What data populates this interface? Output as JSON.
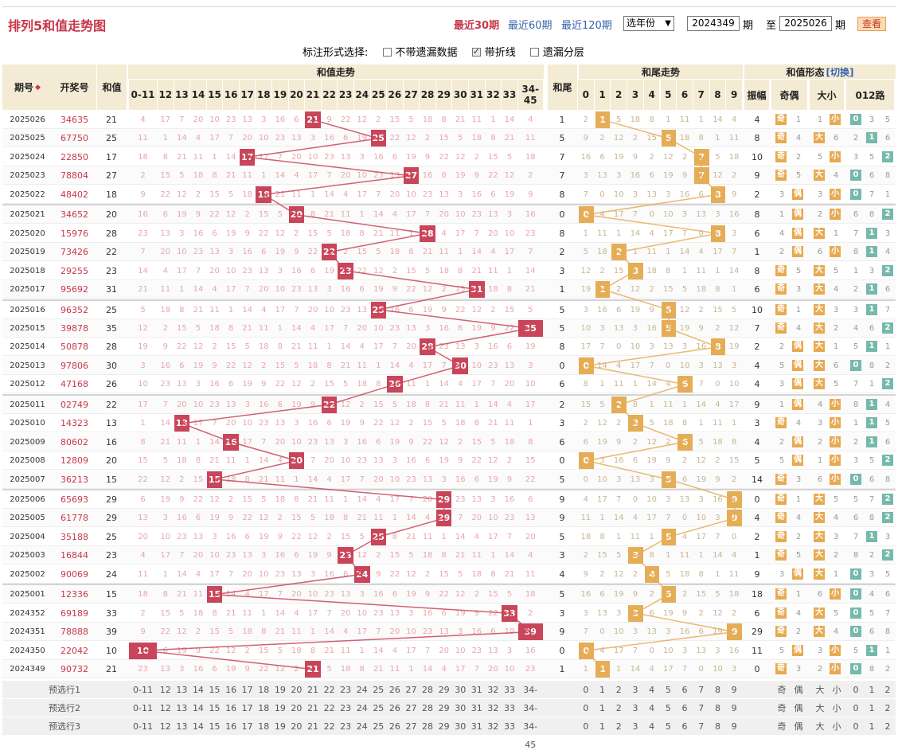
{
  "page": {
    "title": "排列5和值走势图"
  },
  "periods": {
    "links": [
      "最近30期",
      "最近60期",
      "最近120期"
    ],
    "active_index": 0
  },
  "toolbar": {
    "year_select": "选年份",
    "from_issue": "2024349",
    "label_qi": "期",
    "label_to": "至",
    "to_issue": "2025026",
    "query_button": "查看"
  },
  "marking": {
    "label": "标注形式选择:",
    "options": [
      {
        "label": "不带遗漏数据",
        "checked": false
      },
      {
        "label": "带折线",
        "checked": true
      },
      {
        "label": "遗漏分层",
        "checked": false
      }
    ]
  },
  "headers": {
    "issue": "期号",
    "prize": "开奖号",
    "sum": "和值",
    "sum_trend": "和值走势",
    "tail": "和尾",
    "tail_trend": "和尾走势",
    "form": "和值形态",
    "switch_link": "[切换]",
    "amplitude": "振幅",
    "odd_even": "奇偶",
    "big_small": "大小",
    "road": "012路",
    "sum_cols": [
      "0-11",
      "12",
      "13",
      "14",
      "15",
      "16",
      "17",
      "18",
      "19",
      "20",
      "21",
      "22",
      "23",
      "24",
      "25",
      "26",
      "27",
      "28",
      "29",
      "30",
      "31",
      "32",
      "33",
      "34-45"
    ],
    "tail_cols": [
      "0",
      "1",
      "2",
      "3",
      "4",
      "5",
      "6",
      "7",
      "8",
      "9"
    ]
  },
  "rows": [
    {
      "issue": "2025026",
      "prize": "34635",
      "sum": 21,
      "tail": 1,
      "amp": 4,
      "odd": "奇",
      "big": "小",
      "road": 0
    },
    {
      "issue": "2025025",
      "prize": "67750",
      "sum": 25,
      "tail": 5,
      "amp": 8,
      "odd": "奇",
      "big": "大",
      "road": 1
    },
    {
      "issue": "2025024",
      "prize": "22850",
      "sum": 17,
      "tail": 7,
      "amp": 10,
      "odd": "奇",
      "big": "小",
      "road": 2
    },
    {
      "issue": "2025023",
      "prize": "78804",
      "sum": 27,
      "tail": 7,
      "amp": 9,
      "odd": "奇",
      "big": "大",
      "road": 0
    },
    {
      "issue": "2025022",
      "prize": "48402",
      "sum": 18,
      "tail": 8,
      "amp": 2,
      "odd": "偶",
      "big": "小",
      "road": 0
    },
    {
      "issue": "2025021",
      "prize": "34652",
      "sum": 20,
      "tail": 0,
      "amp": 8,
      "odd": "偶",
      "big": "小",
      "road": 2
    },
    {
      "issue": "2025020",
      "prize": "15976",
      "sum": 28,
      "tail": 8,
      "amp": 6,
      "odd": "偶",
      "big": "大",
      "road": 1
    },
    {
      "issue": "2025019",
      "prize": "73426",
      "sum": 22,
      "tail": 2,
      "amp": 1,
      "odd": "偶",
      "big": "小",
      "road": 1
    },
    {
      "issue": "2025018",
      "prize": "29255",
      "sum": 23,
      "tail": 3,
      "amp": 8,
      "odd": "奇",
      "big": "大",
      "road": 2
    },
    {
      "issue": "2025017",
      "prize": "95692",
      "sum": 31,
      "tail": 1,
      "amp": 6,
      "odd": "奇",
      "big": "大",
      "road": 1
    },
    {
      "issue": "2025016",
      "prize": "96352",
      "sum": 25,
      "tail": 5,
      "amp": 10,
      "odd": "奇",
      "big": "大",
      "road": 1
    },
    {
      "issue": "2025015",
      "prize": "39878",
      "sum": 35,
      "tail": 5,
      "amp": 7,
      "odd": "奇",
      "big": "大",
      "road": 2
    },
    {
      "issue": "2025014",
      "prize": "50878",
      "sum": 28,
      "tail": 8,
      "amp": 2,
      "odd": "偶",
      "big": "大",
      "road": 1
    },
    {
      "issue": "2025013",
      "prize": "97806",
      "sum": 30,
      "tail": 0,
      "amp": 4,
      "odd": "偶",
      "big": "大",
      "road": 0
    },
    {
      "issue": "2025012",
      "prize": "47168",
      "sum": 26,
      "tail": 6,
      "amp": 4,
      "odd": "偶",
      "big": "大",
      "road": 2
    },
    {
      "issue": "2025011",
      "prize": "02749",
      "sum": 22,
      "tail": 2,
      "amp": 9,
      "odd": "偶",
      "big": "小",
      "road": 1
    },
    {
      "issue": "2025010",
      "prize": "14323",
      "sum": 13,
      "tail": 3,
      "amp": 3,
      "odd": "奇",
      "big": "小",
      "road": 1
    },
    {
      "issue": "2025009",
      "prize": "80602",
      "sum": 16,
      "tail": 6,
      "amp": 4,
      "odd": "偶",
      "big": "小",
      "road": 1
    },
    {
      "issue": "2025008",
      "prize": "12809",
      "sum": 20,
      "tail": 0,
      "amp": 5,
      "odd": "偶",
      "big": "小",
      "road": 2
    },
    {
      "issue": "2025007",
      "prize": "36213",
      "sum": 15,
      "tail": 5,
      "amp": 14,
      "odd": "奇",
      "big": "小",
      "road": 0
    },
    {
      "issue": "2025006",
      "prize": "65693",
      "sum": 29,
      "tail": 9,
      "amp": 0,
      "odd": "奇",
      "big": "大",
      "road": 2
    },
    {
      "issue": "2025005",
      "prize": "61778",
      "sum": 29,
      "tail": 9,
      "amp": 4,
      "odd": "奇",
      "big": "大",
      "road": 2
    },
    {
      "issue": "2025004",
      "prize": "35188",
      "sum": 25,
      "tail": 5,
      "amp": 2,
      "odd": "奇",
      "big": "大",
      "road": 1
    },
    {
      "issue": "2025003",
      "prize": "16844",
      "sum": 23,
      "tail": 3,
      "amp": 1,
      "odd": "奇",
      "big": "大",
      "road": 2
    },
    {
      "issue": "2025002",
      "prize": "90069",
      "sum": 24,
      "tail": 4,
      "amp": 9,
      "odd": "偶",
      "big": "大",
      "road": 0
    },
    {
      "issue": "2025001",
      "prize": "12336",
      "sum": 15,
      "tail": 5,
      "amp": 18,
      "odd": "奇",
      "big": "小",
      "road": 0
    },
    {
      "issue": "2024352",
      "prize": "69189",
      "sum": 33,
      "tail": 3,
      "amp": 6,
      "odd": "奇",
      "big": "大",
      "road": 0
    },
    {
      "issue": "2024351",
      "prize": "78888",
      "sum": 39,
      "tail": 9,
      "amp": 29,
      "odd": "奇",
      "big": "大",
      "road": 0
    },
    {
      "issue": "2024350",
      "prize": "22042",
      "sum": 10,
      "tail": 0,
      "amp": 11,
      "odd": "偶",
      "big": "小",
      "road": 1
    },
    {
      "issue": "2024349",
      "prize": "90732",
      "sum": 21,
      "tail": 1,
      "amp": 0,
      "odd": "奇",
      "big": "小",
      "road": 0
    }
  ],
  "preselect": {
    "labels": [
      "预选行1",
      "预选行2",
      "预选行3"
    ],
    "odd_even": [
      "奇",
      "偶"
    ],
    "big_small": [
      "大",
      "小"
    ],
    "road": [
      "0",
      "1",
      "2"
    ]
  },
  "colors": {
    "sum_hit": "#c9455a",
    "tail_hit": "#e5ad56",
    "header_bg": "#f4ebd4",
    "accent": "#c8374a",
    "link": "#3a63ad",
    "road_tag": "#75b9ad"
  }
}
